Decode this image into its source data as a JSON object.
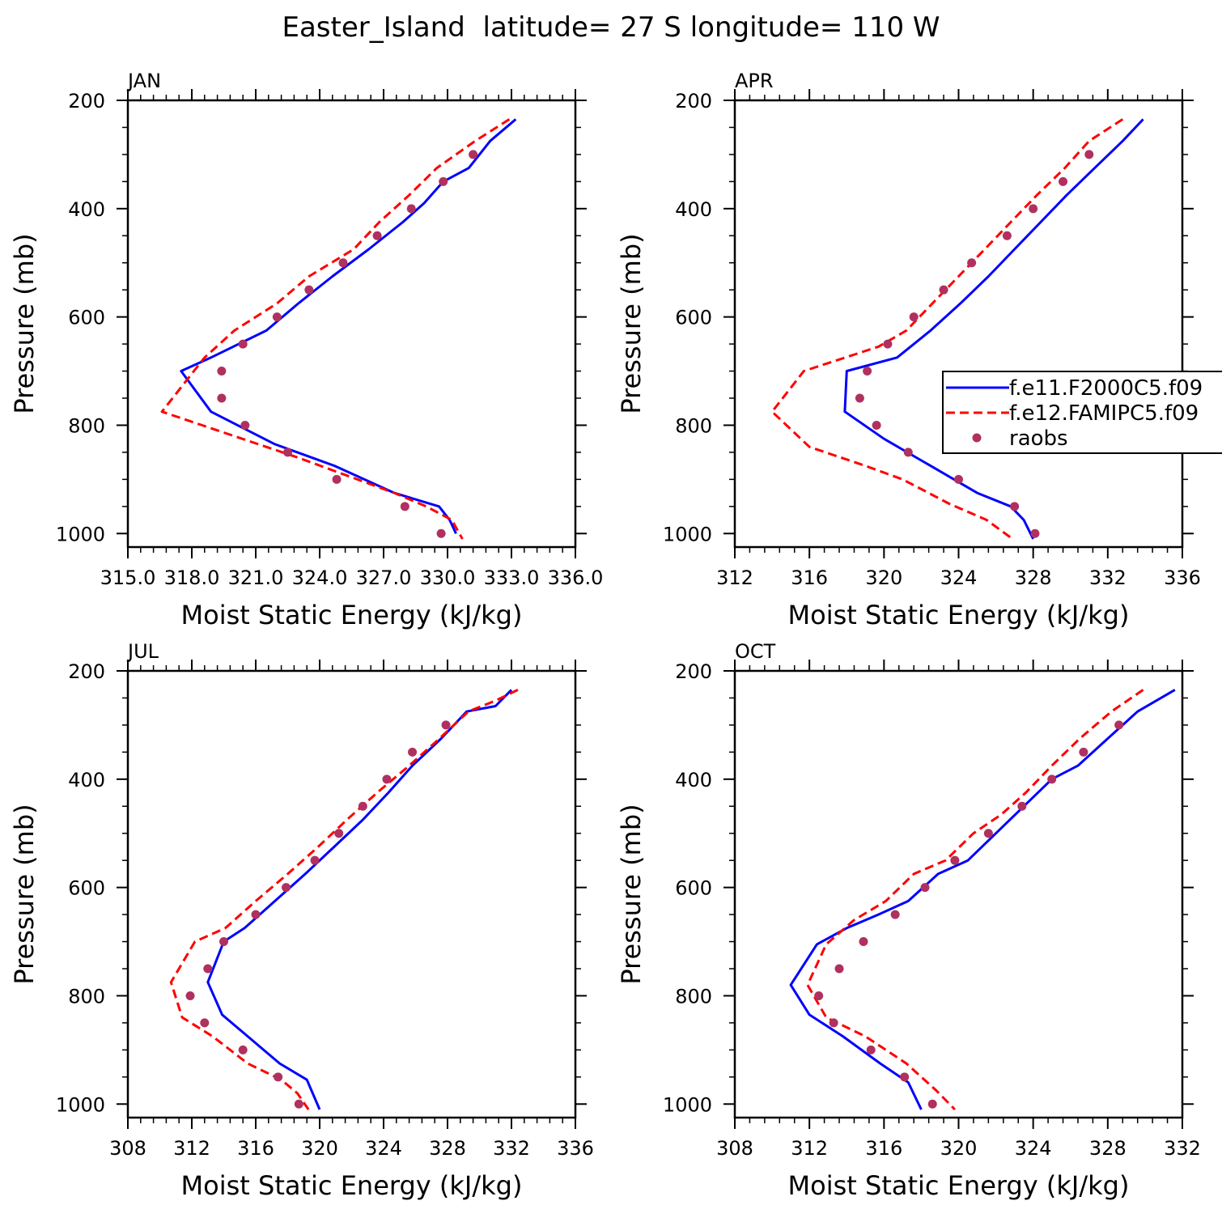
{
  "figure": {
    "title": "Easter_Island  latitude= 27 S longitude= 110 W"
  },
  "legend": {
    "entries": [
      {
        "label": "f.e11.F2000C5.f09",
        "style": "solid",
        "color": "#0000ff"
      },
      {
        "label": "f.e12.FAMIPC5.f09",
        "style": "dashed",
        "color": "#ff0000"
      },
      {
        "label": "raobs",
        "style": "marker",
        "color": "#b03060"
      }
    ]
  },
  "chart_data": [
    {
      "type": "line",
      "panel": "JAN",
      "title": "JAN",
      "xlabel": "Moist Static Energy (kJ/kg)",
      "ylabel": "Pressure (mb)",
      "xlim": [
        315.0,
        336.0
      ],
      "ylim": [
        1025,
        200
      ],
      "xticks": [
        315.0,
        318.0,
        321.0,
        324.0,
        327.0,
        330.0,
        333.0,
        336.0
      ],
      "xtick_labels": [
        "315.0",
        "318.0",
        "321.0",
        "324.0",
        "327.0",
        "330.0",
        "333.0",
        "336.0"
      ],
      "yticks": [
        200,
        400,
        600,
        800,
        1000
      ],
      "ytick_labels": [
        "200",
        "400",
        "600",
        "800",
        "1000"
      ],
      "series": [
        {
          "name": "f.e11.F2000C5.f09",
          "style": "solid",
          "color": "#0000ff",
          "x": [
            333.2,
            332.0,
            331.0,
            329.8,
            328.9,
            327.9,
            326.3,
            324.6,
            323.0,
            321.5,
            318.9,
            317.5,
            318.9,
            321.9,
            324.7,
            327.5,
            329.6,
            330.1,
            330.4
          ],
          "y": [
            235,
            275,
            325,
            350,
            390,
            425,
            475,
            525,
            575,
            625,
            675,
            700,
            775,
            835,
            875,
            925,
            950,
            975,
            1000
          ]
        },
        {
          "name": "f.e12.FAMIPC5.f09",
          "style": "dashed",
          "color": "#ff0000",
          "x": [
            332.9,
            331.3,
            329.5,
            328.2,
            326.8,
            325.6,
            323.5,
            322.0,
            320.0,
            318.6,
            316.6,
            323.0,
            327.5,
            329.0,
            330.2,
            330.7
          ],
          "y": [
            235,
            275,
            325,
            375,
            425,
            475,
            525,
            575,
            625,
            675,
            775,
            860,
            925,
            950,
            975,
            1010
          ]
        },
        {
          "name": "raobs",
          "style": "marker",
          "color": "#b03060",
          "x": [
            331.2,
            329.8,
            328.3,
            326.7,
            325.1,
            323.5,
            322.0,
            320.4,
            319.4,
            319.4,
            320.5,
            322.5,
            324.8,
            328.0,
            329.7
          ],
          "y": [
            300,
            350,
            400,
            450,
            500,
            550,
            600,
            650,
            700,
            750,
            800,
            850,
            900,
            950,
            1000
          ]
        }
      ]
    },
    {
      "type": "line",
      "panel": "APR",
      "title": "APR",
      "xlabel": "Moist Static Energy (kJ/kg)",
      "ylabel": "Pressure (mb)",
      "xlim": [
        312,
        336
      ],
      "ylim": [
        1025,
        200
      ],
      "xticks": [
        312,
        316,
        320,
        324,
        328,
        332,
        336
      ],
      "xtick_labels": [
        "312",
        "316",
        "320",
        "324",
        "328",
        "332",
        "336"
      ],
      "yticks": [
        200,
        400,
        600,
        800,
        1000
      ],
      "ytick_labels": [
        "200",
        "400",
        "600",
        "800",
        "1000"
      ],
      "series": [
        {
          "name": "f.e11.F2000C5.f09",
          "style": "solid",
          "color": "#0000ff",
          "x": [
            333.9,
            332.8,
            331.3,
            329.8,
            328.4,
            327.0,
            325.6,
            324.1,
            322.5,
            320.7,
            318.0,
            317.9,
            320.0,
            322.5,
            325.0,
            326.8,
            327.5,
            328.0
          ],
          "y": [
            235,
            275,
            325,
            375,
            425,
            475,
            525,
            575,
            625,
            675,
            700,
            775,
            825,
            875,
            925,
            950,
            975,
            1010
          ]
        },
        {
          "name": "f.e12.FAMIPC5.f09",
          "style": "dashed",
          "color": "#ff0000",
          "x": [
            332.8,
            331.0,
            329.7,
            328.2,
            326.8,
            325.4,
            324.0,
            322.6,
            321.2,
            319.7,
            315.7,
            314.0,
            316.0,
            319.0,
            321.0,
            323.5,
            325.5,
            326.9
          ],
          "y": [
            235,
            275,
            325,
            375,
            425,
            475,
            525,
            575,
            625,
            655,
            700,
            775,
            840,
            875,
            900,
            945,
            975,
            1010
          ]
        },
        {
          "name": "raobs",
          "style": "marker",
          "color": "#b03060",
          "x": [
            331.0,
            329.6,
            328.0,
            326.6,
            324.7,
            323.2,
            321.6,
            320.2,
            319.1,
            318.7,
            319.6,
            321.3,
            324.0,
            327.0,
            328.1
          ],
          "y": [
            300,
            350,
            400,
            450,
            500,
            550,
            600,
            650,
            700,
            750,
            800,
            850,
            900,
            950,
            1000
          ]
        }
      ]
    },
    {
      "type": "line",
      "panel": "JUL",
      "title": "JUL",
      "xlabel": "Moist Static Energy (kJ/kg)",
      "ylabel": "Pressure (mb)",
      "xlim": [
        308,
        336
      ],
      "ylim": [
        1025,
        200
      ],
      "xticks": [
        308,
        312,
        316,
        320,
        324,
        328,
        332,
        336
      ],
      "xtick_labels": [
        "308",
        "312",
        "316",
        "320",
        "324",
        "328",
        "332",
        "336"
      ],
      "yticks": [
        200,
        400,
        600,
        800,
        1000
      ],
      "ytick_labels": [
        "200",
        "400",
        "600",
        "800",
        "1000"
      ],
      "series": [
        {
          "name": "f.e11.F2000C5.f09",
          "style": "solid",
          "color": "#0000ff",
          "x": [
            332.0,
            331.0,
            329.2,
            327.6,
            325.8,
            324.3,
            322.7,
            320.9,
            319.1,
            317.2,
            315.3,
            314.0,
            313.0,
            313.9,
            315.5,
            317.5,
            319.2,
            320.0
          ],
          "y": [
            235,
            265,
            275,
            325,
            375,
            425,
            475,
            525,
            575,
            625,
            675,
            700,
            775,
            835,
            875,
            925,
            955,
            1010
          ]
        },
        {
          "name": "f.e12.FAMIPC5.f09",
          "style": "dashed",
          "color": "#ff0000",
          "x": [
            332.4,
            331.0,
            329.3,
            327.5,
            325.6,
            323.6,
            321.7,
            319.9,
            318.0,
            316.0,
            314.1,
            312.2,
            310.7,
            311.4,
            313.3,
            315.5,
            317.6,
            318.6,
            319.3
          ],
          "y": [
            235,
            255,
            275,
            325,
            375,
            425,
            475,
            525,
            575,
            625,
            675,
            700,
            775,
            840,
            875,
            925,
            955,
            980,
            1010
          ]
        },
        {
          "name": "raobs",
          "style": "marker",
          "color": "#b03060",
          "x": [
            327.9,
            325.8,
            324.2,
            322.7,
            321.2,
            319.7,
            317.9,
            316.0,
            314.0,
            313.0,
            311.9,
            312.8,
            315.2,
            317.4,
            318.7
          ],
          "y": [
            300,
            350,
            400,
            450,
            500,
            550,
            600,
            650,
            700,
            750,
            800,
            850,
            900,
            950,
            1000
          ]
        }
      ]
    },
    {
      "type": "line",
      "panel": "OCT",
      "title": "OCT",
      "xlabel": "Moist Static Energy (kJ/kg)",
      "ylabel": "Pressure (mb)",
      "xlim": [
        308,
        332
      ],
      "ylim": [
        1025,
        200
      ],
      "xticks": [
        308,
        312,
        316,
        320,
        324,
        328,
        332
      ],
      "xtick_labels": [
        "308",
        "312",
        "316",
        "320",
        "324",
        "328",
        "332"
      ],
      "yticks": [
        200,
        400,
        600,
        800,
        1000
      ],
      "ytick_labels": [
        "200",
        "400",
        "600",
        "800",
        "1000"
      ],
      "series": [
        {
          "name": "f.e11.F2000C5.f09",
          "style": "solid",
          "color": "#0000ff",
          "x": [
            331.6,
            329.6,
            328.0,
            326.4,
            325.0,
            323.5,
            322.0,
            320.5,
            318.9,
            317.3,
            315.7,
            314.0,
            312.4,
            311.0,
            312.0,
            313.8,
            315.8,
            317.3,
            318.0
          ],
          "y": [
            235,
            275,
            325,
            375,
            400,
            450,
            500,
            550,
            575,
            625,
            650,
            675,
            705,
            780,
            835,
            875,
            925,
            960,
            1010
          ]
        },
        {
          "name": "f.e12.FAMIPC5.f09",
          "style": "dashed",
          "color": "#ff0000",
          "x": [
            329.9,
            328.2,
            326.5,
            325.0,
            323.6,
            322.3,
            320.8,
            319.3,
            317.6,
            316.1,
            314.4,
            312.9,
            311.9,
            312.9,
            315.0,
            317.2,
            318.8,
            319.8
          ],
          "y": [
            235,
            275,
            325,
            375,
            425,
            465,
            500,
            550,
            575,
            625,
            660,
            705,
            780,
            840,
            875,
            925,
            975,
            1010
          ]
        },
        {
          "name": "raobs",
          "style": "marker",
          "color": "#b03060",
          "x": [
            328.6,
            326.7,
            325.0,
            323.4,
            321.6,
            319.8,
            318.2,
            316.6,
            314.9,
            313.6,
            312.5,
            313.3,
            315.3,
            317.1,
            318.6
          ],
          "y": [
            300,
            350,
            400,
            450,
            500,
            550,
            600,
            650,
            700,
            750,
            800,
            850,
            900,
            950,
            1000
          ]
        }
      ]
    }
  ]
}
